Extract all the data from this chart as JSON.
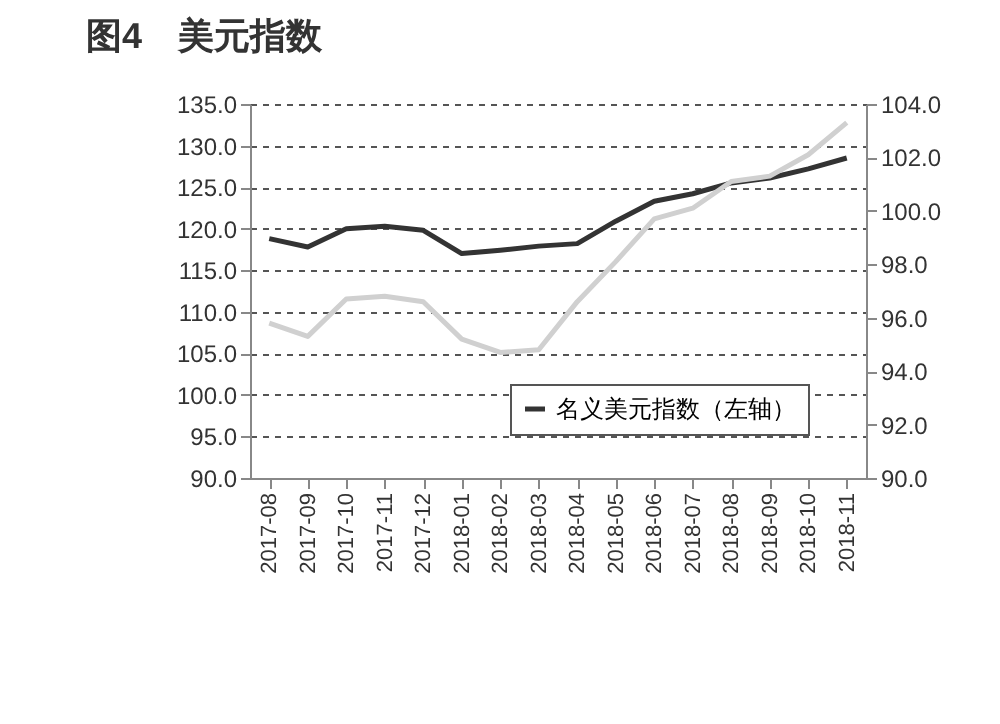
{
  "chart_data": {
    "type": "line",
    "title": "图4　美元指数",
    "categories": [
      "2017-08",
      "2017-09",
      "2017-10",
      "2017-11",
      "2017-12",
      "2018-01",
      "2018-02",
      "2018-03",
      "2018-04",
      "2018-05",
      "2018-06",
      "2018-07",
      "2018-08",
      "2018-09",
      "2018-10",
      "2018-11"
    ],
    "series": [
      {
        "name": "名义美元指数（左轴）",
        "color": "#333333",
        "values": [
          118.8,
          117.8,
          120.0,
          120.3,
          119.8,
          117.0,
          117.4,
          117.9,
          118.2,
          120.9,
          123.3,
          124.2,
          125.5,
          126.1,
          127.2,
          128.5
        ]
      },
      {
        "color": "#d0d0d0",
        "axis": "y2",
        "values": [
          95.8,
          95.3,
          96.7,
          96.8,
          96.6,
          95.2,
          94.7,
          94.8,
          96.6,
          98.1,
          99.7,
          100.1,
          101.1,
          101.3,
          102.1,
          103.3
        ]
      }
    ],
    "ylim": [
      90,
      135
    ],
    "yticks": [
      {
        "value": 90,
        "label": "90.0"
      },
      {
        "value": 95,
        "label": "95.0"
      },
      {
        "value": 100,
        "label": "100.0"
      },
      {
        "value": 105,
        "label": "105.0"
      },
      {
        "value": 110,
        "label": "110.0"
      },
      {
        "value": 115,
        "label": "115.0"
      },
      {
        "value": 120,
        "label": "120.0"
      },
      {
        "value": 125,
        "label": "125.0"
      },
      {
        "value": 130,
        "label": "130.0"
      },
      {
        "value": 135,
        "label": "135.0"
      }
    ],
    "y2lim": [
      90,
      104
    ],
    "y2ticks": [
      {
        "value": 90,
        "label": "90.0"
      },
      {
        "value": 92,
        "label": "92.0"
      },
      {
        "value": 94,
        "label": "94.0"
      },
      {
        "value": 96,
        "label": "96.0"
      },
      {
        "value": 98,
        "label": "98.0"
      },
      {
        "value": 100,
        "label": "100.0"
      },
      {
        "value": 102,
        "label": "102.0"
      },
      {
        "value": 104,
        "label": "104.0"
      }
    ],
    "grid": "y",
    "legend": "bottom",
    "marker": "none",
    "line_style": "solid"
  }
}
